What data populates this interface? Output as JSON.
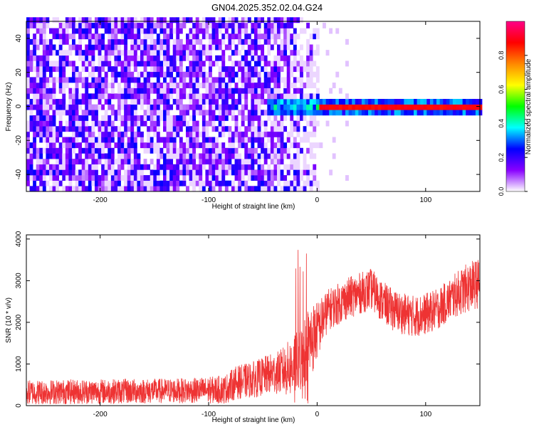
{
  "chart_data": [
    {
      "type": "heatmap",
      "title": "GN04.2025.352.02.04.G24",
      "xlabel": "Height of straight line (km)",
      "ylabel": "Frequency (Hz)",
      "xlim": [
        -268,
        150
      ],
      "ylim": [
        -50,
        50
      ],
      "xticks": [
        -200,
        -100,
        0,
        100
      ],
      "yticks": [
        -40,
        -20,
        0,
        20,
        40
      ],
      "xtick_labels": [
        "-200",
        "-100",
        "0",
        "100"
      ],
      "ytick_labels": [
        "-40",
        "-20",
        "0",
        "20",
        "40"
      ],
      "colorbar": {
        "label": "Normalized spectral amplitude",
        "range": [
          0,
          1
        ],
        "ticks": [
          0.0,
          0.2,
          0.4,
          0.6,
          0.8
        ],
        "tick_labels": [
          "0.0",
          "0.2",
          "0.4",
          "0.6",
          "0.8"
        ],
        "stops": [
          "#ffffff",
          "#8800ff",
          "#0000ff",
          "#00ffff",
          "#00ff00",
          "#ffff00",
          "#ff8800",
          "#ff0000",
          "#ff0088"
        ]
      },
      "features": {
        "noise_floor_x_range": [
          -268,
          0
        ],
        "noise_floor_amplitude": [
          0.05,
          0.25
        ],
        "signal_line_frequency": 0,
        "signal_start_x": -48,
        "signal_peak_amplitude": 0.85
      }
    },
    {
      "type": "line",
      "xlabel": "Height of straight line (km)",
      "ylabel": "SNR (10 * v/v)",
      "xlim": [
        -268,
        150
      ],
      "ylim": [
        0,
        4100
      ],
      "xticks": [
        -200,
        -100,
        0,
        100
      ],
      "yticks": [
        0,
        1000,
        2000,
        3000,
        4000
      ],
      "xtick_labels": [
        "-200",
        "-100",
        "0",
        "100"
      ],
      "ytick_labels": [
        "0",
        "1000",
        "2000",
        "3000",
        "4000"
      ],
      "series": [
        {
          "name": "SNR",
          "color": "#ee3333",
          "x": [
            -268,
            -240,
            -200,
            -160,
            -120,
            -100,
            -85,
            -75,
            -65,
            -55,
            -45,
            -35,
            -25,
            -15,
            -10,
            -5,
            0,
            10,
            20,
            30,
            40,
            50,
            60,
            70,
            80,
            90,
            100,
            110,
            120,
            130,
            140,
            150
          ],
          "center": [
            320,
            330,
            340,
            350,
            360,
            370,
            390,
            550,
            600,
            650,
            750,
            800,
            900,
            1100,
            1400,
            1600,
            1800,
            2300,
            2450,
            2600,
            2700,
            2800,
            2500,
            2300,
            2200,
            2150,
            2200,
            2300,
            2500,
            2700,
            2850,
            2950
          ],
          "spread": [
            300,
            300,
            300,
            300,
            300,
            320,
            350,
            400,
            420,
            450,
            480,
            520,
            700,
            800,
            900,
            900,
            700,
            500,
            500,
            500,
            500,
            500,
            500,
            500,
            500,
            500,
            500,
            500,
            500,
            550,
            600,
            600
          ]
        }
      ]
    }
  ]
}
